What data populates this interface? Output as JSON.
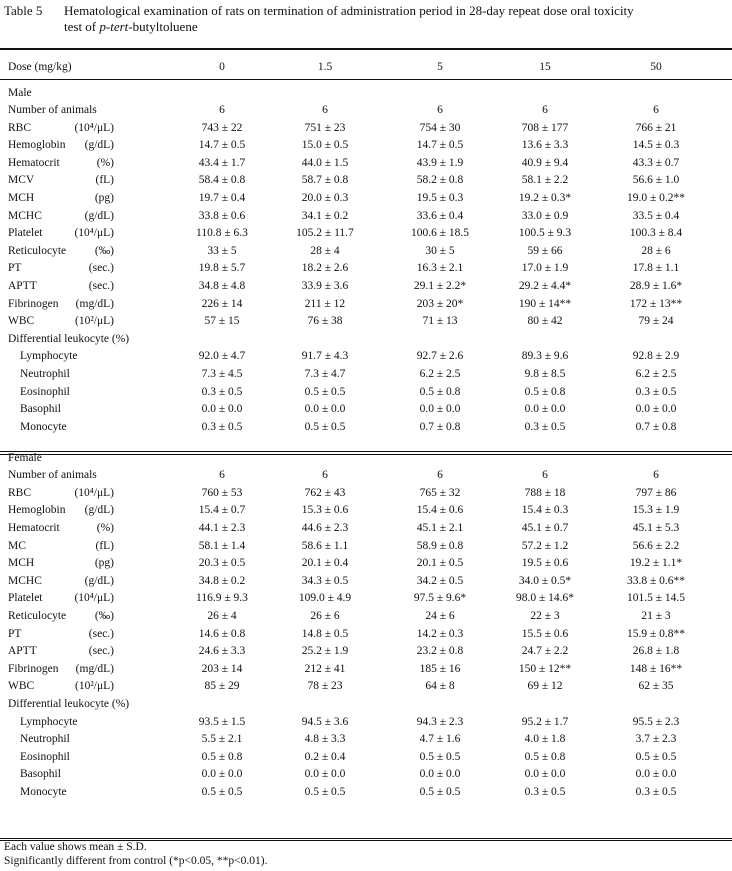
{
  "title": {
    "label": "Table 5",
    "line1": "Hematological examination of rats on termination of administration period in 28-day repeat dose oral toxicity",
    "line2_prefix": "test of ",
    "line2_italic": "p-tert",
    "line2_suffix": "-butyltoluene"
  },
  "header": {
    "dose_label": "Dose (mg/kg)",
    "doses": [
      "0",
      "1.5",
      "5",
      "15",
      "50"
    ]
  },
  "sections": [
    {
      "name": "Male",
      "rows": [
        {
          "label": "Number of animals",
          "unit": "",
          "values": [
            "6",
            "6",
            "6",
            "6",
            "6"
          ]
        },
        {
          "label": "RBC",
          "unit": "(10⁴/μL)",
          "values": [
            "743 ± 22",
            "751 ± 23",
            "754 ± 30",
            "708 ± 177",
            "766 ± 21"
          ]
        },
        {
          "label": "Hemoglobin",
          "unit": "(g/dL)",
          "values": [
            "14.7 ± 0.5",
            "15.0 ± 0.5",
            "14.7 ± 0.5",
            "13.6 ± 3.3",
            "14.5 ± 0.3"
          ]
        },
        {
          "label": "Hematocrit",
          "unit": "(%)",
          "values": [
            "43.4 ± 1.7",
            "44.0 ± 1.5",
            "43.9 ± 1.9",
            "40.9 ± 9.4",
            "43.3 ± 0.7"
          ]
        },
        {
          "label": "MCV",
          "unit": "(fL)",
          "values": [
            "58.4 ± 0.8",
            "58.7 ± 0.8",
            "58.2 ± 0.8",
            "58.1 ± 2.2",
            "56.6 ± 1.0"
          ]
        },
        {
          "label": "MCH",
          "unit": "(pg)",
          "values": [
            "19.7 ± 0.4",
            "20.0 ± 0.3",
            "19.5 ± 0.3",
            "19.2 ± 0.3*",
            "19.0 ± 0.2**"
          ]
        },
        {
          "label": "MCHC",
          "unit": "(g/dL)",
          "values": [
            "33.8 ± 0.6",
            "34.1 ± 0.2",
            "33.6 ± 0.4",
            "33.0 ± 0.9",
            "33.5 ± 0.4"
          ]
        },
        {
          "label": "Platelet",
          "unit": "(10⁴/μL)",
          "values": [
            "110.8 ± 6.3",
            "105.2 ± 11.7",
            "100.6 ± 18.5",
            "100.5 ± 9.3",
            "100.3 ± 8.4"
          ]
        },
        {
          "label": "Reticulocyte",
          "unit": "(‰)",
          "values": [
            "33 ± 5",
            "28 ± 4",
            "30 ± 5",
            "59 ± 66",
            "28 ± 6"
          ]
        },
        {
          "label": "PT",
          "unit": "(sec.)",
          "values": [
            "19.8 ± 5.7",
            "18.2 ± 2.6",
            "16.3 ± 2.1",
            "17.0 ± 1.9",
            "17.8 ± 1.1"
          ]
        },
        {
          "label": "APTT",
          "unit": "(sec.)",
          "values": [
            "34.8 ± 4.8",
            "33.9 ± 3.6",
            "29.1 ± 2.2*",
            "29.2 ± 4.4*",
            "28.9 ± 1.6*"
          ]
        },
        {
          "label": "Fibrinogen",
          "unit": "(mg/dL)",
          "values": [
            "226 ± 14",
            "211 ± 12",
            "203 ± 20*",
            "190 ± 14**",
            "172 ± 13**"
          ]
        },
        {
          "label": "WBC",
          "unit": "(10²/μL)",
          "values": [
            "57 ± 15",
            "76 ± 38",
            "71 ± 13",
            "80 ± 42",
            "79 ± 24"
          ]
        },
        {
          "label": "Differential leukocyte (%)",
          "unit": "",
          "values": [
            "",
            "",
            "",
            "",
            ""
          ]
        },
        {
          "label": "Lymphocyte",
          "indent": true,
          "unit": "",
          "values": [
            "92.0 ± 4.7",
            "91.7 ± 4.3",
            "92.7 ± 2.6",
            "89.3 ± 9.6",
            "92.8 ± 2.9"
          ]
        },
        {
          "label": "Neutrophil",
          "indent": true,
          "unit": "",
          "values": [
            "7.3 ± 4.5",
            "7.3 ± 4.7",
            "6.2 ± 2.5",
            "9.8 ± 8.5",
            "6.2 ± 2.5"
          ]
        },
        {
          "label": "Eosinophil",
          "indent": true,
          "unit": "",
          "values": [
            "0.3 ± 0.5",
            "0.5 ± 0.5",
            "0.5 ± 0.8",
            "0.5 ± 0.8",
            "0.3 ± 0.5"
          ]
        },
        {
          "label": "Basophil",
          "indent": true,
          "unit": "",
          "values": [
            "0.0 ± 0.0",
            "0.0 ± 0.0",
            "0.0 ± 0.0",
            "0.0 ± 0.0",
            "0.0 ± 0.0"
          ]
        },
        {
          "label": "Monocyte",
          "indent": true,
          "unit": "",
          "values": [
            "0.3 ± 0.5",
            "0.5 ± 0.5",
            "0.7 ± 0.8",
            "0.3 ± 0.5",
            "0.7 ± 0.8"
          ]
        }
      ]
    },
    {
      "name": "Female",
      "rows": [
        {
          "label": "Number of animals",
          "unit": "",
          "values": [
            "6",
            "6",
            "6",
            "6",
            "6"
          ]
        },
        {
          "label": "RBC",
          "unit": "(10⁴/μL)",
          "values": [
            "760 ± 53",
            "762 ± 43",
            "765 ± 32",
            "788 ± 18",
            "797 ± 86"
          ]
        },
        {
          "label": "Hemoglobin",
          "unit": "(g/dL)",
          "values": [
            "15.4 ± 0.7",
            "15.3 ± 0.6",
            "15.4 ± 0.6",
            "15.4 ± 0.3",
            "15.3 ± 1.9"
          ]
        },
        {
          "label": "Hematocrit",
          "unit": "(%)",
          "values": [
            "44.1 ± 2.3",
            "44.6 ± 2.3",
            "45.1 ± 2.1",
            "45.1 ± 0.7",
            "45.1 ± 5.3"
          ]
        },
        {
          "label": "MC",
          "unit": "(fL)",
          "values": [
            "58.1 ± 1.4",
            "58.6 ± 1.1",
            "58.9 ± 0.8",
            "57.2 ± 1.2",
            "56.6 ± 2.2"
          ]
        },
        {
          "label": "MCH",
          "unit": "(pg)",
          "values": [
            "20.3 ± 0.5",
            "20.1 ± 0.4",
            "20.1 ± 0.5",
            "19.5 ± 0.6",
            "19.2 ± 1.1*"
          ]
        },
        {
          "label": "MCHC",
          "unit": "(g/dL)",
          "values": [
            "34.8 ± 0.2",
            "34.3 ± 0.5",
            "34.2 ± 0.5",
            "34.0 ± 0.5*",
            "33.8 ± 0.6**"
          ]
        },
        {
          "label": "Platelet",
          "unit": "(10⁴/μL)",
          "values": [
            "116.9 ± 9.3",
            "109.0 ± 4.9",
            "97.5 ± 9.6*",
            "98.0 ± 14.6*",
            "101.5 ± 14.5"
          ]
        },
        {
          "label": "Reticulocyte",
          "unit": "(‰)",
          "values": [
            "26 ± 4",
            "26 ± 6",
            "24 ± 6",
            "22 ± 3",
            "21 ± 3"
          ]
        },
        {
          "label": "PT",
          "unit": "(sec.)",
          "values": [
            "14.6 ± 0.8",
            "14.8 ± 0.5",
            "14.2 ± 0.3",
            "15.5 ± 0.6",
            "15.9 ± 0.8**"
          ]
        },
        {
          "label": "APTT",
          "unit": "(sec.)",
          "values": [
            "24.6 ± 3.3",
            "25.2 ± 1.9",
            "23.2 ± 0.8",
            "24.7 ± 2.2",
            "26.8 ± 1.8"
          ]
        },
        {
          "label": "Fibrinogen",
          "unit": "(mg/dL)",
          "values": [
            "203 ± 14",
            "212 ± 41",
            "185 ± 16",
            "150 ± 12**",
            "148 ± 16**"
          ]
        },
        {
          "label": "WBC",
          "unit": "(10²/μL)",
          "values": [
            "85 ± 29",
            "78 ± 23",
            "64 ± 8",
            "69 ± 12",
            "62 ± 35"
          ]
        },
        {
          "label": "Differential leukocyte (%)",
          "unit": "",
          "values": [
            "",
            "",
            "",
            "",
            ""
          ]
        },
        {
          "label": "Lymphocyte",
          "indent": true,
          "unit": "",
          "values": [
            "93.5 ± 1.5",
            "94.5 ± 3.6",
            "94.3 ± 2.3",
            "95.2 ± 1.7",
            "95.5 ± 2.3"
          ]
        },
        {
          "label": "Neutrophil",
          "indent": true,
          "unit": "",
          "values": [
            "5.5 ± 2.1",
            "4.8 ± 3.3",
            "4.7 ± 1.6",
            "4.0 ± 1.8",
            "3.7 ± 2.3"
          ]
        },
        {
          "label": "Eosinophil",
          "indent": true,
          "unit": "",
          "values": [
            "0.5 ± 0.8",
            "0.2 ± 0.4",
            "0.5 ± 0.5",
            "0.5 ± 0.8",
            "0.5 ± 0.5"
          ]
        },
        {
          "label": "Basophil",
          "indent": true,
          "unit": "",
          "values": [
            "0.0 ± 0.0",
            "0.0 ± 0.0",
            "0.0 ± 0.0",
            "0.0 ± 0.0",
            "0.0 ± 0.0"
          ]
        },
        {
          "label": "Monocyte",
          "indent": true,
          "unit": "",
          "values": [
            "0.5 ± 0.5",
            "0.5 ± 0.5",
            "0.5 ± 0.5",
            "0.3 ± 0.5",
            "0.3 ± 0.5"
          ]
        }
      ]
    }
  ],
  "footnotes": {
    "line1": "Each value shows mean ± S.D.",
    "line2": "Significantly different from control (*p<0.05, **p<0.01)."
  }
}
